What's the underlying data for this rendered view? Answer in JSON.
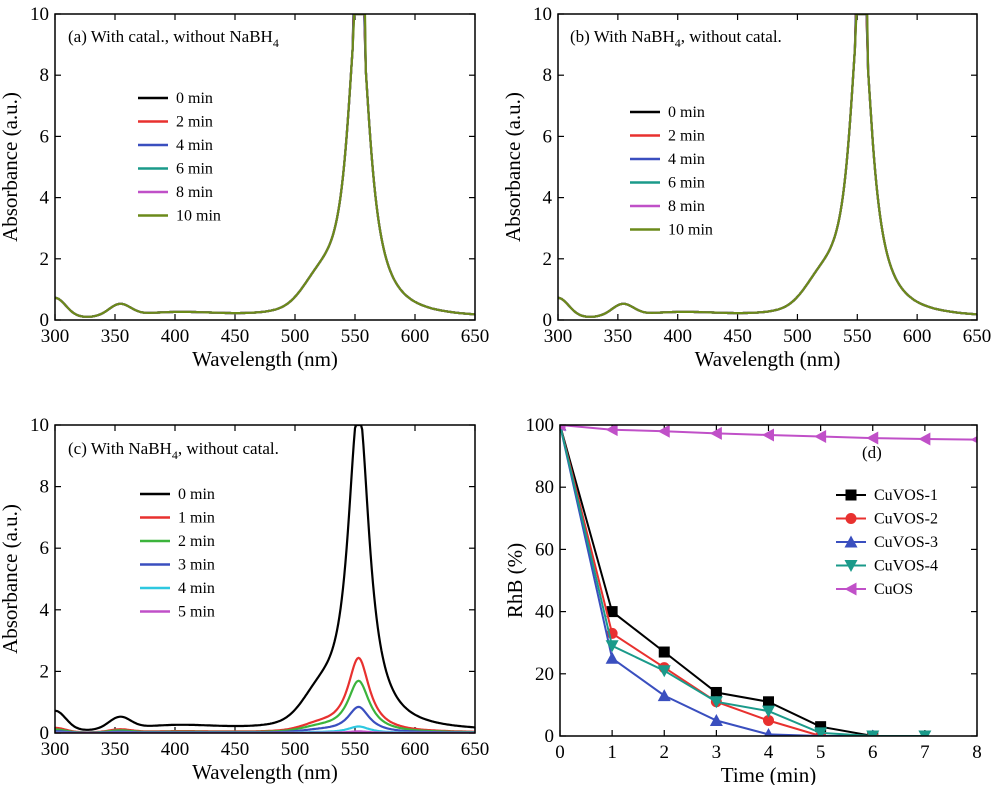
{
  "chart_data": [
    {
      "id": "a",
      "type": "line",
      "title": "(a) With catal., without NaBH",
      "title_sub": "4",
      "title_tail": "",
      "xlabel": "Wavelength (nm)",
      "ylabel": "Absorbance (a.u.)",
      "xlim": [
        300,
        650
      ],
      "ylim": [
        0,
        10
      ],
      "xticks": [
        300,
        350,
        400,
        450,
        500,
        550,
        600,
        650
      ],
      "yticks": [
        0,
        2,
        4,
        6,
        8,
        10
      ],
      "legend_position": "upper-left",
      "saturated": true,
      "series": [
        {
          "name": "0 min",
          "color": "#000000",
          "scale": 1.0
        },
        {
          "name": "2 min",
          "color": "#e8312f",
          "scale": 1.0
        },
        {
          "name": "4 min",
          "color": "#3a4fbf",
          "scale": 1.0
        },
        {
          "name": "6 min",
          "color": "#1a9a8a",
          "scale": 1.0
        },
        {
          "name": "8 min",
          "color": "#c050c8",
          "scale": 1.0
        },
        {
          "name": "10 min",
          "color": "#6b8a1a",
          "scale": 1.0
        }
      ]
    },
    {
      "id": "b",
      "type": "line",
      "title": "(b) With NaBH",
      "title_sub": "4",
      "title_tail": ", without catal.",
      "xlabel": "Wavelength (nm)",
      "ylabel": "Absorbance (a.u.)",
      "xlim": [
        300,
        650
      ],
      "ylim": [
        0,
        10
      ],
      "xticks": [
        300,
        350,
        400,
        450,
        500,
        550,
        600,
        650
      ],
      "yticks": [
        0,
        2,
        4,
        6,
        8,
        10
      ],
      "legend_position": "center-left",
      "saturated": true,
      "series": [
        {
          "name": "0 min",
          "color": "#000000",
          "scale": 1.0
        },
        {
          "name": "2 min",
          "color": "#e8312f",
          "scale": 1.0
        },
        {
          "name": "4 min",
          "color": "#3a4fbf",
          "scale": 1.0
        },
        {
          "name": "6 min",
          "color": "#1a9a8a",
          "scale": 1.0
        },
        {
          "name": "8 min",
          "color": "#c050c8",
          "scale": 1.0
        },
        {
          "name": "10 min",
          "color": "#6b8a1a",
          "scale": 1.0
        }
      ]
    },
    {
      "id": "c",
      "type": "line",
      "title": "(c) With NaBH",
      "title_sub": "4",
      "title_tail": ", without catal.",
      "xlabel": "Wavelength (nm)",
      "ylabel": "Absorbance (a.u.)",
      "xlim": [
        300,
        650
      ],
      "ylim": [
        0,
        10
      ],
      "xticks": [
        300,
        350,
        400,
        450,
        500,
        550,
        600,
        650
      ],
      "yticks": [
        0,
        2,
        4,
        6,
        8,
        10
      ],
      "legend_position": "upper-left",
      "saturated": false,
      "series": [
        {
          "name": "0 min",
          "color": "#000000",
          "scale": 1.0
        },
        {
          "name": "1 min",
          "color": "#e8312f",
          "scale": 0.23
        },
        {
          "name": "2 min",
          "color": "#3cb43c",
          "scale": 0.16
        },
        {
          "name": "3 min",
          "color": "#3a4fbf",
          "scale": 0.08
        },
        {
          "name": "4 min",
          "color": "#2ec8e0",
          "scale": 0.02
        },
        {
          "name": "5 min",
          "color": "#c050c8",
          "scale": 0.005
        }
      ]
    },
    {
      "id": "d",
      "type": "line",
      "title": "(d)",
      "xlabel": "Time (min)",
      "ylabel": "RhB (%)",
      "xlim": [
        0,
        8
      ],
      "ylim": [
        0,
        100
      ],
      "xticks": [
        0,
        1,
        2,
        3,
        4,
        5,
        6,
        7,
        8
      ],
      "yticks": [
        0,
        20,
        40,
        60,
        80,
        100
      ],
      "legend_position": "center-right",
      "series": [
        {
          "name": "CuVOS-1",
          "color": "#000000",
          "marker": "square",
          "x": [
            0,
            1,
            2,
            3,
            4,
            5,
            6
          ],
          "y": [
            100,
            40,
            27,
            14,
            11,
            3,
            0
          ]
        },
        {
          "name": "CuVOS-2",
          "color": "#e8312f",
          "marker": "circle",
          "x": [
            0,
            1,
            2,
            3,
            4,
            5,
            6
          ],
          "y": [
            100,
            33,
            22,
            11,
            5,
            0,
            0
          ]
        },
        {
          "name": "CuVOS-3",
          "color": "#3a4fbf",
          "marker": "triangle-up",
          "x": [
            0,
            1,
            2,
            3,
            4,
            5,
            6
          ],
          "y": [
            100,
            25,
            13,
            5,
            0.5,
            0,
            0
          ]
        },
        {
          "name": "CuVOS-4",
          "color": "#1a9a8a",
          "marker": "triangle-down",
          "x": [
            0,
            1,
            2,
            3,
            4,
            5,
            6,
            7
          ],
          "y": [
            100,
            29,
            21,
            11,
            8,
            1,
            0,
            0
          ]
        },
        {
          "name": "CuOS",
          "color": "#c050c8",
          "marker": "triangle-left",
          "x": [
            0,
            1,
            2,
            3,
            4,
            5,
            6,
            7,
            8
          ],
          "y": [
            100,
            98.5,
            98,
            97.3,
            96.8,
            96.3,
            95.8,
            95.5,
            95.3
          ]
        }
      ]
    }
  ]
}
